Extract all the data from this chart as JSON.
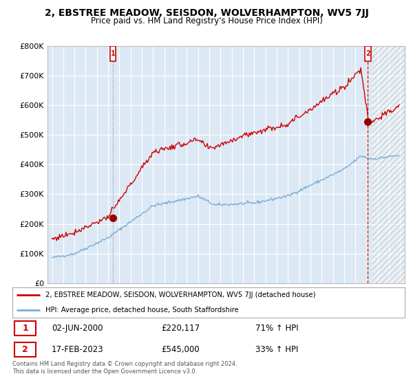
{
  "title": "2, EBSTREE MEADOW, SEISDON, WOLVERHAMPTON, WV5 7JJ",
  "subtitle": "Price paid vs. HM Land Registry's House Price Index (HPI)",
  "ylim": [
    0,
    800000
  ],
  "yticks": [
    0,
    100000,
    200000,
    300000,
    400000,
    500000,
    600000,
    700000,
    800000
  ],
  "ytick_labels": [
    "£0",
    "£100K",
    "£200K",
    "£300K",
    "£400K",
    "£500K",
    "£600K",
    "£700K",
    "£800K"
  ],
  "background_color": "#ffffff",
  "plot_background": "#dce9f5",
  "grid_color": "#ffffff",
  "red_color": "#cc0000",
  "blue_color": "#7aadd4",
  "legend_line1": "2, EBSTREE MEADOW, SEISDON, WOLVERHAMPTON, WV5 7JJ (detached house)",
  "legend_line2": "HPI: Average price, detached house, South Staffordshire",
  "annotation1_label": "1",
  "annotation1_date": "02-JUN-2000",
  "annotation1_price": "£220,117",
  "annotation1_hpi": "71% ↑ HPI",
  "annotation2_label": "2",
  "annotation2_date": "17-FEB-2023",
  "annotation2_price": "£545,000",
  "annotation2_hpi": "33% ↑ HPI",
  "footer": "Contains HM Land Registry data © Crown copyright and database right 2024.\nThis data is licensed under the Open Government Licence v3.0.",
  "xlim_start": 1994.6,
  "xlim_end": 2026.4,
  "hatch_start": 2023.5,
  "sale1_x": 2000.42,
  "sale1_y": 220117,
  "sale2_x": 2023.12,
  "sale2_y": 545000
}
